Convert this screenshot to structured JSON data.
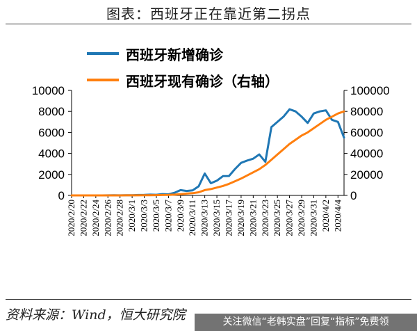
{
  "page": {
    "title": "图表：西班牙正在靠近第二拐点",
    "source": "资料来源：Wind，恒大研究院",
    "banner": "关注微信“老韩实盘”回复“指标”免费领"
  },
  "chart_data": {
    "type": "line",
    "title": "",
    "legend_position": "top-left",
    "grid": false,
    "y_left": {
      "min": 0,
      "max": 10000,
      "ticks": [
        0,
        2000,
        4000,
        6000,
        8000,
        10000
      ]
    },
    "y_right": {
      "min": 0,
      "max": 100000,
      "ticks": [
        0,
        20000,
        40000,
        60000,
        80000,
        100000
      ]
    },
    "x_tick_labels": [
      "2020/2/20",
      "2020/2/22",
      "2020/2/24",
      "2020/2/26",
      "2020/2/28",
      "2020/3/1",
      "2020/3/3",
      "2020/3/5",
      "2020/3/7",
      "2020/3/9",
      "2020/3/11",
      "2020/3/13",
      "2020/3/15",
      "2020/3/17",
      "2020/3/19",
      "2020/3/21",
      "2020/3/23",
      "2020/3/25",
      "2020/3/27",
      "2020/3/29",
      "2020/3/31",
      "2020/4/2",
      "2020/4/4"
    ],
    "x_days": [
      "2/20",
      "2/21",
      "2/22",
      "2/23",
      "2/24",
      "2/25",
      "2/26",
      "2/27",
      "2/28",
      "2/29",
      "3/1",
      "3/2",
      "3/3",
      "3/4",
      "3/5",
      "3/6",
      "3/7",
      "3/8",
      "3/9",
      "3/10",
      "3/11",
      "3/12",
      "3/13",
      "3/14",
      "3/15",
      "3/16",
      "3/17",
      "3/18",
      "3/19",
      "3/20",
      "3/21",
      "3/22",
      "3/23",
      "3/24",
      "3/25",
      "3/26",
      "3/27",
      "3/28",
      "3/29",
      "3/30",
      "3/31",
      "4/1",
      "4/2",
      "4/3",
      "4/4",
      "4/5"
    ],
    "series": [
      {
        "name": "西班牙新增确诊",
        "axis": "left",
        "color": "#1F77B4",
        "values": [
          0,
          0,
          0,
          0,
          0,
          3,
          4,
          12,
          6,
          13,
          15,
          39,
          49,
          71,
          60,
          124,
          99,
          250,
          501,
          424,
          482,
          869,
          2086,
          1159,
          1407,
          1834,
          1850,
          2515,
          3100,
          3320,
          3500,
          3900,
          3200,
          6500,
          7000,
          7500,
          8200,
          8000,
          7500,
          6900,
          7800,
          8000,
          8100,
          7200,
          7000,
          5500
        ]
      },
      {
        "name": "西班牙现有确诊（右轴）",
        "axis": "right",
        "color": "#FF7F0E",
        "values": [
          0,
          0,
          0,
          0,
          0,
          3,
          7,
          19,
          25,
          38,
          53,
          92,
          141,
          212,
          272,
          396,
          495,
          745,
          1200,
          1700,
          2100,
          3000,
          5000,
          6000,
          7500,
          9000,
          11000,
          13500,
          16000,
          19000,
          22000,
          25000,
          29000,
          34000,
          39000,
          44000,
          49000,
          53000,
          57000,
          60000,
          64000,
          68000,
          72000,
          75000,
          78000,
          80000
        ]
      }
    ]
  }
}
